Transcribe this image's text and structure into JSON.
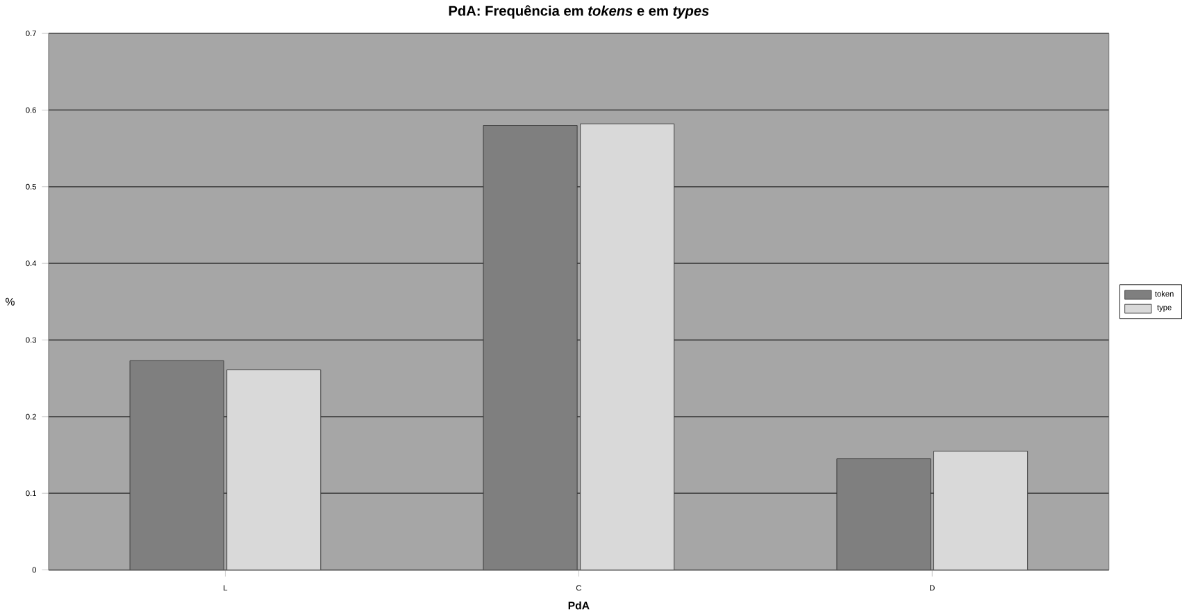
{
  "chart_data": {
    "type": "bar",
    "title": "PdA: Frequência em *tokens* e em *types*",
    "xlabel": "PdA",
    "ylabel": "%",
    "categories": [
      "L",
      "C",
      "D"
    ],
    "series": [
      {
        "name": "token",
        "color": "#7f7f7f",
        "values": [
          0.273,
          0.58,
          0.145
        ]
      },
      {
        "name": "type",
        "color": "#d9d9d9",
        "values": [
          0.261,
          0.582,
          0.155
        ]
      }
    ],
    "ylim": [
      0,
      0.7
    ],
    "yticks": [
      0,
      0.1,
      0.2,
      0.3,
      0.4,
      0.5,
      0.6,
      0.7
    ],
    "grid": "y",
    "legend": "right"
  }
}
